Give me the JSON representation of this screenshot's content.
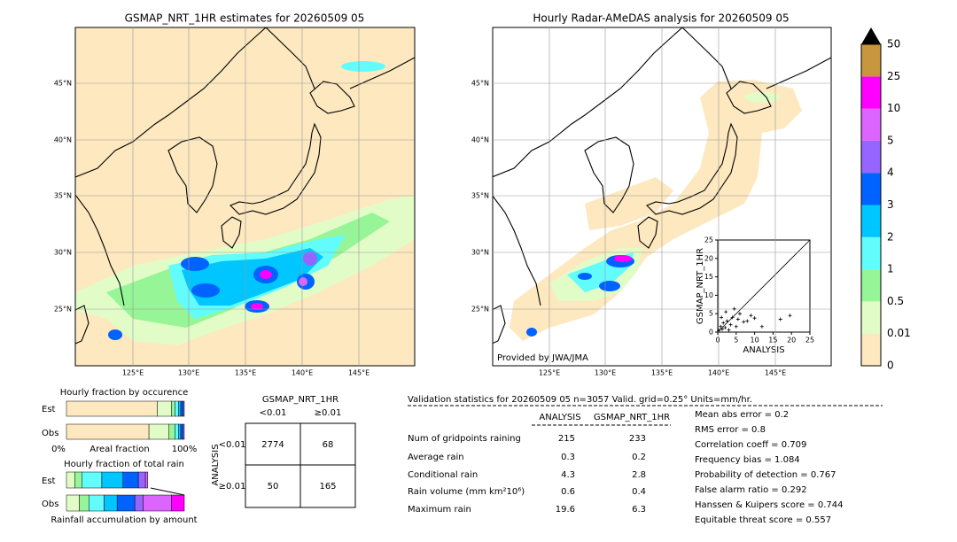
{
  "left_map": {
    "title": "GSMAP_NRT_1HR estimates for 20260509 05",
    "lat_labels": [
      "45°N",
      "40°N",
      "35°N",
      "30°N",
      "25°N"
    ],
    "lon_labels": [
      "125°E",
      "130°E",
      "135°E",
      "140°E",
      "145°E"
    ]
  },
  "right_map": {
    "title": "Hourly Radar-AMeDAS analysis for 20260509 05",
    "lat_labels": [
      "45°N",
      "40°N",
      "35°N",
      "30°N",
      "25°N"
    ],
    "lon_labels": [
      "125°E",
      "130°E",
      "135°E",
      "140°E",
      "145°E"
    ],
    "credit": "Provided by JWA/JMA"
  },
  "colorbar": {
    "labels": [
      "0",
      "0.01",
      "0.5",
      "1",
      "2",
      "3",
      "4",
      "5",
      "10",
      "25",
      "50"
    ],
    "colors": [
      "#fde8bf",
      "#e2fcc8",
      "#96f596",
      "#62fcfc",
      "#00c6ff",
      "#0062ff",
      "#9664ff",
      "#dc64ff",
      "#ff00ff",
      "#c8963c"
    ]
  },
  "scatter": {
    "xlabel": "ANALYSIS",
    "ylabel": "GSMAP_NRT_1HR",
    "xlim": [
      0,
      25
    ],
    "ylim": [
      0,
      25
    ],
    "xticks": [
      0,
      5,
      10,
      15,
      20,
      25
    ],
    "yticks": [
      0,
      5,
      10,
      15,
      20,
      25
    ],
    "x": [
      0.3,
      0.8,
      1.2,
      1.5,
      2,
      2.5,
      3,
      3.5,
      4,
      5,
      5.5,
      6,
      7,
      8,
      9,
      10,
      12,
      17,
      19.6,
      1,
      2.2,
      4.5
    ],
    "y": [
      0.5,
      1.5,
      0.8,
      2.5,
      1.2,
      3,
      0.6,
      2,
      4,
      1.5,
      3.5,
      5,
      2.8,
      3,
      4.5,
      3.8,
      1.5,
      3.5,
      4.5,
      4,
      5.5,
      6.3
    ]
  },
  "fraction_occurrence": {
    "title": "Hourly fraction by occurence",
    "rows": [
      "Est",
      "Obs"
    ],
    "axis_labels": [
      "0%",
      "Areal fraction",
      "100%"
    ],
    "segments": [
      [
        {
          "value": 77,
          "color": "#fde8bf"
        },
        {
          "value": 12,
          "color": "#e2fcc8"
        },
        {
          "value": 3,
          "color": "#96f596"
        },
        {
          "value": 3,
          "color": "#62fcfc"
        },
        {
          "value": 2,
          "color": "#00c6ff"
        },
        {
          "value": 2,
          "color": "#0062ff"
        },
        {
          "value": 1,
          "color": "#9664ff"
        }
      ],
      [
        {
          "value": 70,
          "color": "#fde8bf"
        },
        {
          "value": 17,
          "color": "#e2fcc8"
        },
        {
          "value": 5,
          "color": "#96f596"
        },
        {
          "value": 3,
          "color": "#62fcfc"
        },
        {
          "value": 2,
          "color": "#00c6ff"
        },
        {
          "value": 2,
          "color": "#0062ff"
        },
        {
          "value": 1,
          "color": "#dc64ff"
        }
      ]
    ]
  },
  "fraction_total": {
    "title": "Hourly fraction of total rain",
    "rows": [
      "Est",
      "Obs"
    ],
    "footer": "Rainfall accumulation by amount",
    "segments": [
      [
        {
          "value": 7,
          "color": "#e2fcc8"
        },
        {
          "value": 6,
          "color": "#96f596"
        },
        {
          "value": 17,
          "color": "#62fcfc"
        },
        {
          "value": 18,
          "color": "#00c6ff"
        },
        {
          "value": 13,
          "color": "#0062ff"
        },
        {
          "value": 6,
          "color": "#9664ff"
        },
        {
          "value": 2,
          "color": "#dc64ff"
        }
      ],
      [
        {
          "value": 11,
          "color": "#e2fcc8"
        },
        {
          "value": 8,
          "color": "#96f596"
        },
        {
          "value": 13,
          "color": "#62fcfc"
        },
        {
          "value": 11,
          "color": "#00c6ff"
        },
        {
          "value": 15,
          "color": "#0062ff"
        },
        {
          "value": 7,
          "color": "#9664ff"
        },
        {
          "value": 24,
          "color": "#dc64ff"
        },
        {
          "value": 11,
          "color": "#ff00ff"
        }
      ]
    ]
  },
  "contingency": {
    "title": "GSMAP_NRT_1HR",
    "col_headers": [
      "<0.01",
      "≥0.01"
    ],
    "row_axis": "ANALYSIS",
    "row_headers": [
      "<0.01",
      "≥0.01"
    ],
    "cells": [
      [
        "2774",
        "68"
      ],
      [
        "50",
        "165"
      ]
    ]
  },
  "validation": {
    "header": "Validation statistics for 20260509 05  n=3057 Valid. grid=0.25° Units=mm/hr.",
    "columns": [
      "ANALYSIS",
      "GSMAP_NRT_1HR"
    ],
    "rows": [
      [
        "Num of gridpoints raining",
        "215",
        "233"
      ],
      [
        "Average rain",
        "0.3",
        "0.2"
      ],
      [
        "Conditional rain",
        "4.3",
        "2.8"
      ],
      [
        "Rain volume (mm km²10⁶)",
        "0.6",
        "0.4"
      ],
      [
        "Maximum rain",
        "19.6",
        "6.3"
      ]
    ],
    "scores": [
      "Mean abs error =    0.2",
      "RMS error =    0.8",
      "Correlation coeff =  0.709",
      "Frequency bias =  1.084",
      "Probability of detection =  0.767",
      "False alarm ratio =  0.292",
      "Hanssen & Kuipers score =  0.744",
      "Equitable threat score =  0.557"
    ]
  }
}
